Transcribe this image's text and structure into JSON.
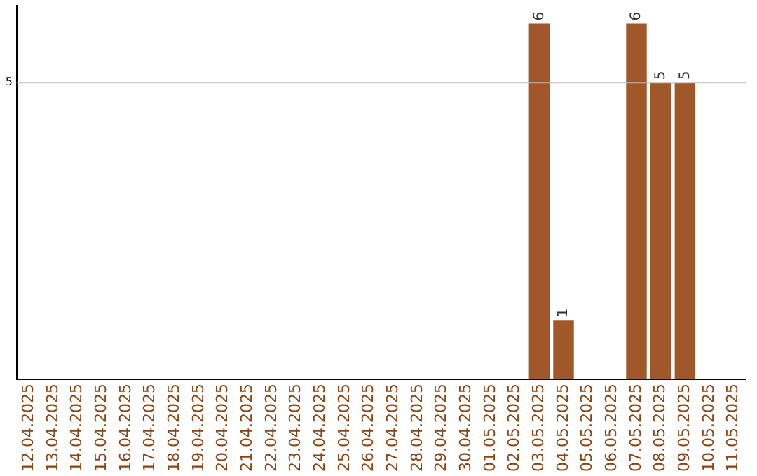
{
  "chart_data": {
    "type": "bar",
    "categories": [
      "12.04.2025",
      "13.04.2025",
      "14.04.2025",
      "15.04.2025",
      "16.04.2025",
      "17.04.2025",
      "18.04.2025",
      "19.04.2025",
      "20.04.2025",
      "21.04.2025",
      "22.04.2025",
      "23.04.2025",
      "24.04.2025",
      "25.04.2025",
      "26.04.2025",
      "27.04.2025",
      "28.04.2025",
      "29.04.2025",
      "30.04.2025",
      "01.05.2025",
      "02.05.2025",
      "03.05.2025",
      "04.05.2025",
      "05.05.2025",
      "06.05.2025",
      "07.05.2025",
      "08.05.2025",
      "09.05.2025",
      "10.05.2025",
      "11.05.2025"
    ],
    "values": [
      null,
      null,
      null,
      null,
      null,
      null,
      null,
      null,
      null,
      null,
      null,
      null,
      null,
      null,
      null,
      null,
      null,
      null,
      null,
      null,
      null,
      6,
      1,
      null,
      null,
      6,
      5,
      5,
      null,
      null
    ],
    "data_labels": true,
    "ylim": [
      0,
      6.3
    ],
    "color": "#a0582a",
    "ref_lines": [
      {
        "axis": "y",
        "value": 5,
        "label": "5",
        "color": "#bbbbbb"
      }
    ],
    "legend": false
  }
}
